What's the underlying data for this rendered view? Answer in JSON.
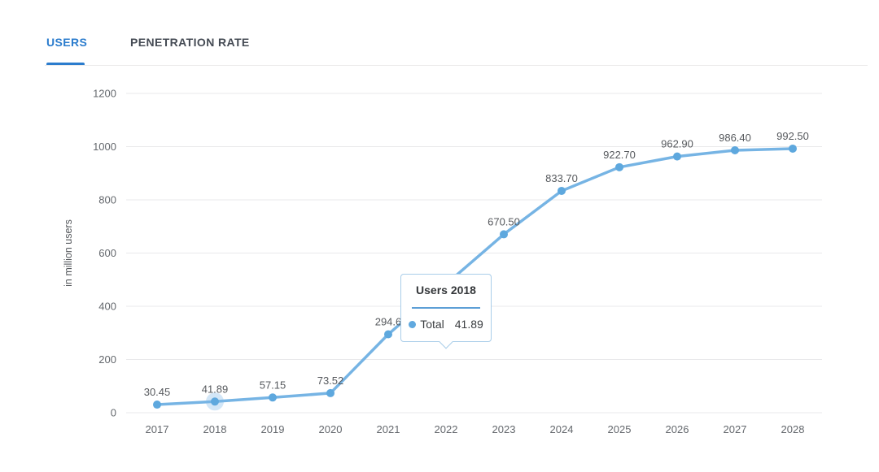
{
  "tabs": {
    "items": [
      {
        "label": "USERS",
        "active": true
      },
      {
        "label": "PENETRATION RATE",
        "active": false
      }
    ]
  },
  "chart_data": {
    "type": "line",
    "title": "",
    "x": [
      "2017",
      "2018",
      "2019",
      "2020",
      "2021",
      "2022",
      "2023",
      "2024",
      "2025",
      "2026",
      "2027",
      "2028"
    ],
    "series": [
      {
        "name": "Total",
        "values": [
          30.45,
          41.89,
          57.15,
          73.52,
          294.6,
          483,
          670.5,
          833.7,
          922.7,
          962.9,
          986.4,
          992.5
        ]
      }
    ],
    "point_labels": [
      "30.45",
      "41.89",
      "57.15",
      "73.52",
      "294.6",
      "",
      "670.50",
      "833.70",
      "922.70",
      "962.90",
      "986.40",
      "992.50"
    ],
    "estimated_points": [
      "2022"
    ],
    "highlighted_x": "2018",
    "xlabel": "",
    "ylabel": "in million users",
    "yticks": [
      0,
      200,
      400,
      600,
      800,
      1000,
      1200
    ],
    "ylim": [
      0,
      1200
    ],
    "grid": true,
    "legend": false
  },
  "tooltip": {
    "title": "Users 2018",
    "series_label": "Total",
    "value": "41.89"
  },
  "colors": {
    "accent_blue": "#2b7ccd",
    "inactive_tab": "#454b54",
    "line": "#76b4e4",
    "dot": "#5ea8de",
    "halo": "rgba(126,184,232,0.35)",
    "grid": "#e9e9eb",
    "tick_text": "#64686d",
    "point_label": "#56595d",
    "tooltip_border": "#a9cde9",
    "tooltip_divider": "#5d9fd6"
  }
}
